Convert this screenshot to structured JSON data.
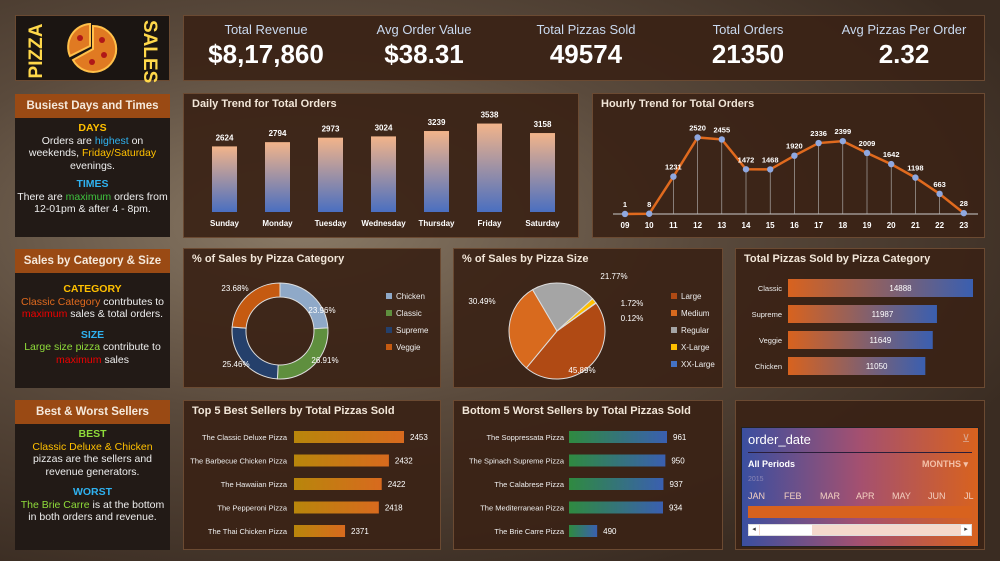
{
  "logo": {
    "left": "PIZZA",
    "right": "SALES"
  },
  "kpis": [
    {
      "label": "Total Revenue",
      "value": "$8,17,860"
    },
    {
      "label": "Avg Order Value",
      "value": "$38.31"
    },
    {
      "label": "Total Pizzas Sold",
      "value": "49574"
    },
    {
      "label": "Total Orders",
      "value": "21350"
    },
    {
      "label": "Avg Pizzas Per Order",
      "value": "2.32"
    }
  ],
  "insights": [
    {
      "title": "Busiest Days and Times",
      "h1": "DAYS",
      "t1a": "Orders are ",
      "t1b": "highest",
      "t1c": " on weekends, ",
      "t1d": "Friday/Saturday",
      "t1e": " evenings.",
      "h2": "TIMES",
      "t2a": "There are ",
      "t2b": "maximum",
      "t2c": " orders from 12-01pm & after 4 - 8pm."
    },
    {
      "title": "Sales by Category & Size",
      "h1": "CATEGORY",
      "t1a": "Classic Category",
      "t1b": " contrbutes to ",
      "t1c": "maximum",
      "t1d": " sales & total orders.",
      "h2": "SIZE",
      "t2a": "Large size pizza",
      "t2b": " contribute to ",
      "t2c": "maximum",
      "t2d": " sales"
    },
    {
      "title": "Best & Worst Sellers",
      "h1": "BEST",
      "t1a": "Classic Deluxe & Chicken",
      "t1b": " pizzas are the sellers and revenue generators.",
      "h2": "WORST",
      "t2a": "The Brie Carre",
      "t2b": " is at the bottom in both orders and revenue."
    }
  ],
  "slicer": {
    "title": "order_date",
    "period": "All Periods",
    "unit": "MONTHS",
    "year": "2015",
    "months": [
      "JAN",
      "FEB",
      "MAR",
      "APR",
      "MAY",
      "JUN",
      "JL"
    ]
  },
  "chart_data": [
    {
      "type": "bar",
      "title": "Daily Trend for Total Orders",
      "categories": [
        "Sunday",
        "Monday",
        "Tuesday",
        "Wednesday",
        "Thursday",
        "Friday",
        "Saturday"
      ],
      "values": [
        2624,
        2794,
        2973,
        3024,
        3239,
        3538,
        3158
      ]
    },
    {
      "type": "line",
      "title": "Hourly Trend for Total Orders",
      "categories": [
        "09",
        "10",
        "11",
        "12",
        "13",
        "14",
        "15",
        "16",
        "17",
        "18",
        "19",
        "20",
        "21",
        "22",
        "23"
      ],
      "values": [
        1,
        8,
        1231,
        2520,
        2455,
        1472,
        1468,
        1920,
        2336,
        2399,
        2009,
        1642,
        1198,
        663,
        28
      ],
      "color": "#e06a1e"
    },
    {
      "type": "pie",
      "variant": "donut",
      "title": "% of Sales by Pizza Category",
      "categories": [
        "Chicken",
        "Classic",
        "Supreme",
        "Veggie"
      ],
      "values": [
        23.96,
        26.91,
        25.46,
        23.68
      ],
      "labels": [
        "23.96%",
        "26.91%",
        "25.46%",
        "23.68%"
      ],
      "colors": [
        "#8fa9c8",
        "#5f8f3e",
        "#25406b",
        "#c55a11"
      ],
      "legend": "right"
    },
    {
      "type": "pie",
      "title": "% of Sales by Pizza Size",
      "categories": [
        "Large",
        "Medium",
        "Regular",
        "X-Large",
        "XX-Large"
      ],
      "values": [
        45.89,
        30.49,
        21.77,
        1.72,
        0.12
      ],
      "labels": [
        "45.89%",
        "30.49%",
        "21.77%",
        "1.72%",
        "0.12%"
      ],
      "colors": [
        "#b04a14",
        "#d86a1e",
        "#a5a5a5",
        "#ffc000",
        "#4472c4"
      ],
      "legend": "right"
    },
    {
      "type": "bar",
      "orientation": "horizontal",
      "title": "Total Pizzas Sold by Pizza Category",
      "categories": [
        "Classic",
        "Supreme",
        "Veggie",
        "Chicken"
      ],
      "values": [
        14888,
        11987,
        11649,
        11050
      ]
    },
    {
      "type": "bar",
      "orientation": "horizontal",
      "title": "Top 5 Best Sellers by Total Pizzas Sold",
      "categories": [
        "The Classic Deluxe Pizza",
        "The Barbecue Chicken Pizza",
        "The Hawaiian Pizza",
        "The Pepperoni Pizza",
        "The Thai Chicken Pizza"
      ],
      "values": [
        2453,
        2432,
        2422,
        2418,
        2371
      ]
    },
    {
      "type": "bar",
      "orientation": "horizontal",
      "title": "Bottom 5 Worst Sellers by Total Pizzas Sold",
      "categories": [
        "The Soppressata Pizza",
        "The Spinach Supreme Pizza",
        "The Calabrese Pizza",
        "The Mediterranean Pizza",
        "The Brie Carre Pizza"
      ],
      "values": [
        961,
        950,
        937,
        934,
        490
      ]
    }
  ]
}
